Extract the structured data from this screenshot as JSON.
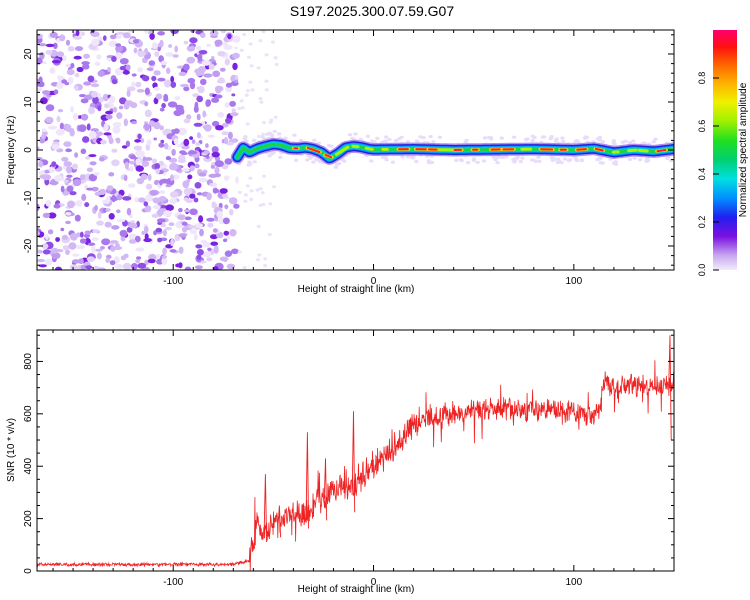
{
  "title": "S197.2025.300.07.59.G07",
  "chart_data": [
    {
      "type": "heatmap",
      "xlabel": "Height of straight line (km)",
      "ylabel": "Frequency (Hz)",
      "xlim": [
        -168,
        150
      ],
      "ylim": [
        -25,
        25
      ],
      "xticks": [
        -100,
        0,
        100
      ],
      "yticks": [
        -20,
        -10,
        0,
        10,
        20
      ],
      "noise_region_x": [
        -168,
        -68
      ],
      "signal_track": {
        "x": [
          -68,
          -65,
          -62,
          -58,
          -54,
          -50,
          -46,
          -42,
          -38,
          -34,
          -30,
          -26,
          -22,
          -18,
          -14,
          -10,
          -6,
          -2,
          0,
          20,
          40,
          60,
          80,
          100,
          110,
          120,
          130,
          140,
          150
        ],
        "y": [
          -1.5,
          0.5,
          -0.5,
          0.3,
          0.8,
          1.2,
          1.0,
          0.4,
          0.3,
          0.5,
          0.2,
          -0.5,
          -1.8,
          -0.8,
          0.5,
          0.8,
          0.6,
          0.2,
          0.1,
          0.2,
          0.0,
          0.1,
          0.2,
          0.0,
          0.3,
          -0.5,
          0.0,
          -0.3,
          0.2
        ]
      },
      "colorbar": {
        "label": "Normalized spectral amplitude",
        "range": [
          0,
          1
        ],
        "ticks": [
          "0.0",
          "0.2",
          "0.4",
          "0.6",
          "0.8"
        ]
      }
    },
    {
      "type": "line",
      "xlabel": "Height of straight line (km)",
      "ylabel": "SNR (10 * v/v)",
      "xlim": [
        -168,
        150
      ],
      "ylim": [
        0,
        920
      ],
      "xticks": [
        -100,
        0,
        100
      ],
      "yticks": [
        0,
        200,
        400,
        600,
        800
      ],
      "color": "#ee2222",
      "series": [
        {
          "name": "SNR",
          "x": [
            -168,
            -150,
            -130,
            -110,
            -90,
            -70,
            -62,
            -60,
            -58,
            -55,
            -50,
            -45,
            -40,
            -35,
            -30,
            -25,
            -20,
            -15,
            -10,
            -5,
            0,
            5,
            10,
            15,
            20,
            25,
            30,
            40,
            50,
            60,
            70,
            80,
            90,
            100,
            110,
            113,
            115,
            120,
            130,
            140,
            150
          ],
          "y": [
            25,
            25,
            25,
            25,
            25,
            25,
            40,
            120,
            200,
            150,
            190,
            180,
            230,
            220,
            250,
            270,
            300,
            340,
            320,
            360,
            400,
            430,
            470,
            520,
            560,
            580,
            590,
            600,
            610,
            620,
            610,
            615,
            620,
            600,
            600,
            610,
            720,
            700,
            710,
            700,
            720
          ]
        }
      ],
      "spikes": [
        {
          "x": -54,
          "y": 370
        },
        {
          "x": -47,
          "y": 250
        },
        {
          "x": -33,
          "y": 530
        },
        {
          "x": -24,
          "y": 430
        },
        {
          "x": -10,
          "y": 610
        },
        {
          "x": 148,
          "y": 900
        }
      ]
    }
  ]
}
